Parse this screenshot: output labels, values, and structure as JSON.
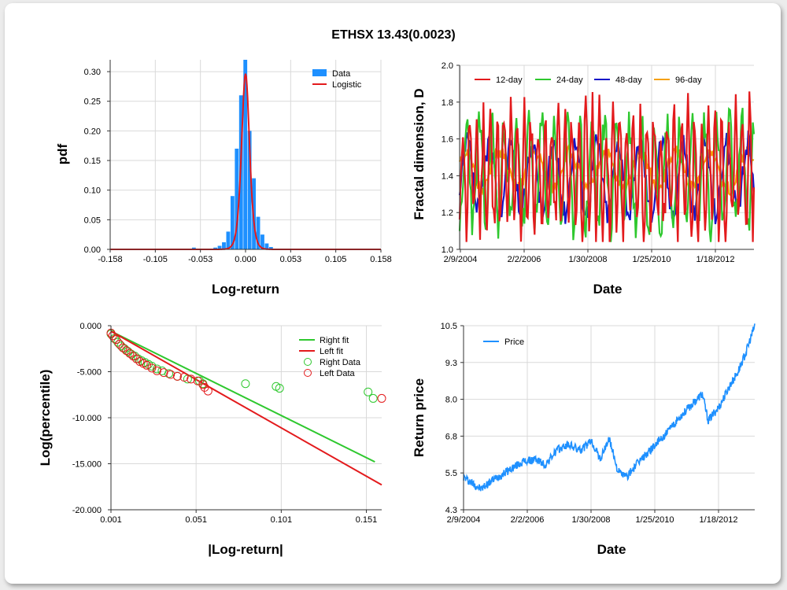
{
  "title": "ETHSX 13.43(0.0023)",
  "colors": {
    "data_blue": "#1e90ff",
    "red": "#e31a1c",
    "green": "#2ec82e",
    "navy": "#1414c8",
    "orange": "#f5a00a",
    "grid": "#d9d9d9"
  },
  "chart_data": [
    {
      "type": "bar",
      "panel": "pdf",
      "xlabel": "Log-return",
      "ylabel": "pdf",
      "xlim": [
        -0.158,
        0.158
      ],
      "ylim": [
        0,
        0.32
      ],
      "xticks": [
        "-0.158",
        "-0.105",
        "-0.053",
        "0.000",
        "0.053",
        "0.105",
        "0.158"
      ],
      "yticks": [
        "0.00",
        "0.05",
        "0.10",
        "0.15",
        "0.20",
        "0.25",
        "0.30"
      ],
      "legend": [
        "Data",
        "Logistic"
      ],
      "bin_width": 0.005,
      "bins": [
        {
          "x": -0.06,
          "y": 0.003
        },
        {
          "x": -0.035,
          "y": 0.003
        },
        {
          "x": -0.03,
          "y": 0.006
        },
        {
          "x": -0.025,
          "y": 0.012
        },
        {
          "x": -0.02,
          "y": 0.03
        },
        {
          "x": -0.015,
          "y": 0.09
        },
        {
          "x": -0.01,
          "y": 0.17
        },
        {
          "x": -0.005,
          "y": 0.26
        },
        {
          "x": 0.0,
          "y": 0.32
        },
        {
          "x": 0.005,
          "y": 0.2
        },
        {
          "x": 0.01,
          "y": 0.12
        },
        {
          "x": 0.015,
          "y": 0.055
        },
        {
          "x": 0.02,
          "y": 0.025
        },
        {
          "x": 0.025,
          "y": 0.01
        },
        {
          "x": 0.03,
          "y": 0.004
        }
      ],
      "logistic": {
        "mu": 0.0,
        "s": 0.0031
      }
    },
    {
      "type": "line",
      "panel": "fractal",
      "xlabel": "Date",
      "ylabel": "Fractal dimension, D",
      "ylim": [
        1.0,
        2.0
      ],
      "xticks": [
        "2/9/2004",
        "2/2/2006",
        "1/30/2008",
        "1/25/2010",
        "1/18/2012"
      ],
      "yticks": [
        "1.0",
        "1.2",
        "1.4",
        "1.6",
        "1.8",
        "2.0"
      ],
      "series": [
        {
          "name": "12-day",
          "color": "#e31a1c",
          "seed": 11,
          "period": 6,
          "amp": 0.3,
          "base": 1.42,
          "noise": 0.14
        },
        {
          "name": "24-day",
          "color": "#2ec82e",
          "seed": 23,
          "period": 11,
          "amp": 0.27,
          "base": 1.41,
          "noise": 0.11
        },
        {
          "name": "48-day",
          "color": "#1414c8",
          "seed": 37,
          "period": 19,
          "amp": 0.19,
          "base": 1.39,
          "noise": 0.07
        },
        {
          "name": "96-day",
          "color": "#f5a00a",
          "seed": 51,
          "period": 31,
          "amp": 0.1,
          "base": 1.43,
          "noise": 0.04
        }
      ]
    },
    {
      "type": "scatter",
      "panel": "tail",
      "xlabel": "|Log-return|",
      "ylabel": "Log(percentile)",
      "xlim": [
        0.001,
        0.16
      ],
      "ylim": [
        -20,
        0
      ],
      "xticks": [
        "0.001",
        "0.051",
        "0.101",
        "0.151"
      ],
      "yticks": [
        "0.000",
        "-5.000",
        "-10.000",
        "-15.000",
        "-20.000"
      ],
      "legend": [
        "Right fit",
        "Left fit",
        "Right Data",
        "Left Data"
      ],
      "right_fit": [
        [
          0.001,
          -0.6
        ],
        [
          0.156,
          -14.8
        ]
      ],
      "left_fit": [
        [
          0.001,
          -0.6
        ],
        [
          0.16,
          -17.3
        ]
      ],
      "right_data": [
        [
          0.001,
          -0.9
        ],
        [
          0.003,
          -1.4
        ],
        [
          0.005,
          -1.8
        ],
        [
          0.007,
          -2.2
        ],
        [
          0.009,
          -2.5
        ],
        [
          0.011,
          -2.8
        ],
        [
          0.013,
          -3.1
        ],
        [
          0.015,
          -3.3
        ],
        [
          0.017,
          -3.6
        ],
        [
          0.019,
          -3.8
        ],
        [
          0.021,
          -4.0
        ],
        [
          0.023,
          -4.2
        ],
        [
          0.025,
          -4.4
        ],
        [
          0.028,
          -4.7
        ],
        [
          0.031,
          -4.9
        ],
        [
          0.035,
          -5.2
        ],
        [
          0.04,
          -5.5
        ],
        [
          0.046,
          -5.8
        ],
        [
          0.053,
          -6.0
        ],
        [
          0.055,
          -6.3
        ],
        [
          0.08,
          -6.3
        ],
        [
          0.098,
          -6.6
        ],
        [
          0.1,
          -6.8
        ],
        [
          0.152,
          -7.2
        ],
        [
          0.155,
          -7.9
        ]
      ],
      "left_data": [
        [
          0.001,
          -0.8
        ],
        [
          0.002,
          -1.1
        ],
        [
          0.004,
          -1.5
        ],
        [
          0.006,
          -2.0
        ],
        [
          0.008,
          -2.4
        ],
        [
          0.01,
          -2.7
        ],
        [
          0.012,
          -3.0
        ],
        [
          0.014,
          -3.3
        ],
        [
          0.016,
          -3.6
        ],
        [
          0.018,
          -3.9
        ],
        [
          0.02,
          -4.1
        ],
        [
          0.022,
          -4.3
        ],
        [
          0.025,
          -4.6
        ],
        [
          0.028,
          -4.9
        ],
        [
          0.032,
          -5.1
        ],
        [
          0.036,
          -5.3
        ],
        [
          0.04,
          -5.5
        ],
        [
          0.044,
          -5.6
        ],
        [
          0.048,
          -5.8
        ],
        [
          0.052,
          -6.0
        ],
        [
          0.055,
          -6.4
        ],
        [
          0.056,
          -6.7
        ],
        [
          0.058,
          -7.1
        ],
        [
          0.16,
          -7.9
        ]
      ]
    },
    {
      "type": "line",
      "panel": "price",
      "xlabel": "Date",
      "ylabel": "Return price",
      "ylim": [
        4.3,
        10.5
      ],
      "xticks": [
        "2/9/2004",
        "2/2/2006",
        "1/30/2008",
        "1/25/2010",
        "1/18/2012"
      ],
      "yticks": [
        "4.3",
        "5.5",
        "6.8",
        "8.0",
        "9.3",
        "10.5"
      ],
      "legend": [
        "Price"
      ],
      "anchors": [
        [
          0,
          5.4
        ],
        [
          0.03,
          5.2
        ],
        [
          0.06,
          5.0
        ],
        [
          0.1,
          5.3
        ],
        [
          0.15,
          5.6
        ],
        [
          0.2,
          5.9
        ],
        [
          0.25,
          6.0
        ],
        [
          0.28,
          5.8
        ],
        [
          0.32,
          6.3
        ],
        [
          0.36,
          6.5
        ],
        [
          0.4,
          6.3
        ],
        [
          0.44,
          6.6
        ],
        [
          0.47,
          6.0
        ],
        [
          0.5,
          6.7
        ],
        [
          0.53,
          5.6
        ],
        [
          0.56,
          5.4
        ],
        [
          0.6,
          5.9
        ],
        [
          0.65,
          6.4
        ],
        [
          0.7,
          6.9
        ],
        [
          0.74,
          7.4
        ],
        [
          0.78,
          7.8
        ],
        [
          0.82,
          8.2
        ],
        [
          0.84,
          7.3
        ],
        [
          0.88,
          7.8
        ],
        [
          0.91,
          8.4
        ],
        [
          0.94,
          8.9
        ],
        [
          0.97,
          9.6
        ],
        [
          1.0,
          10.5
        ]
      ]
    }
  ]
}
